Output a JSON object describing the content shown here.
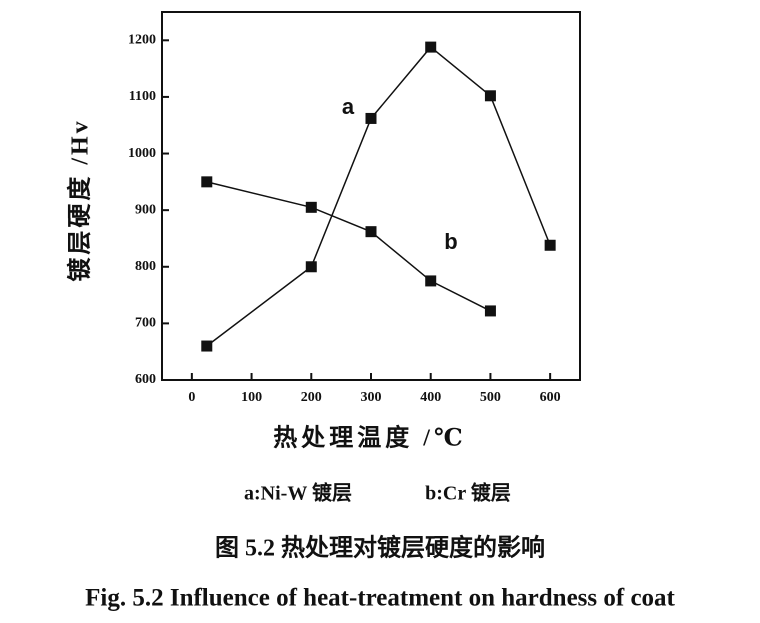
{
  "chart_data": {
    "type": "line",
    "xlabel": "热处理温度 /℃",
    "ylabel": "镀层硬度 /Hv",
    "xlim": [
      -50,
      650
    ],
    "xticks": [
      0,
      100,
      200,
      300,
      400,
      500,
      600
    ],
    "ylim": [
      600,
      1250
    ],
    "yticks": [
      600,
      700,
      800,
      900,
      1000,
      1100,
      1200
    ],
    "grid": false,
    "series": [
      {
        "name": "a:Ni-W 镀层",
        "color": "#111111",
        "x": [
          25,
          200,
          300,
          400,
          500,
          600
        ],
        "values": [
          660,
          800,
          1062,
          1188,
          1102,
          838
        ]
      },
      {
        "name": "b:Cr 镀层",
        "color": "#111111",
        "x": [
          25,
          200,
          300,
          400,
          500
        ],
        "values": [
          950,
          905,
          862,
          775,
          722
        ]
      }
    ],
    "annotations": [
      "a",
      "b"
    ],
    "caption": "图 5.2  热处理对镀层硬度的影响",
    "caption_en": "Fig. 5.2 Influence of heat-treatment on hardness of coat"
  }
}
